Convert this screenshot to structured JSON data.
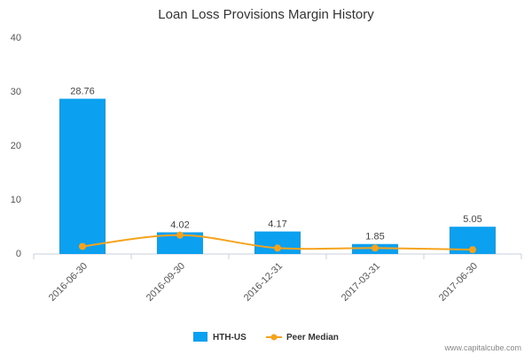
{
  "chart_data": {
    "type": "bar",
    "title": "Loan Loss Provisions Margin History",
    "categories": [
      "2016-06-30",
      "2016-09-30",
      "2016-12-31",
      "2017-03-31",
      "2017-06-30"
    ],
    "series": [
      {
        "name": "HTH-US",
        "type": "bar",
        "color": "#0ba0f0",
        "values": [
          28.76,
          4.02,
          4.17,
          1.85,
          5.05
        ],
        "labels": [
          "28.76",
          "4.02",
          "4.17",
          "1.85",
          "5.05"
        ]
      },
      {
        "name": "Peer Median",
        "type": "line",
        "color": "#f5a31c",
        "values": [
          1.4,
          3.5,
          1.1,
          1.1,
          0.8
        ]
      }
    ],
    "yticks": [
      "0",
      "10",
      "20",
      "30",
      "40"
    ],
    "ylim": [
      0,
      40
    ],
    "grid": false,
    "legend": "bottom-center"
  },
  "credit": "www.capitalcube.com"
}
